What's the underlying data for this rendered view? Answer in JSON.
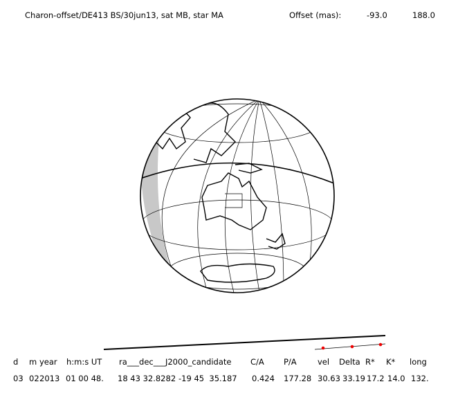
{
  "header": {
    "title": "Charon-offset/DE413 BS/30jun13, sat MB, star MA",
    "offset_label": "Offset (mas):",
    "offset_values": [
      "-93.0",
      "188.0"
    ]
  },
  "table": {
    "columns": [
      "d",
      "m",
      "year",
      "h:m:s UT",
      "ra___dec___J2000_candidate",
      "C/A",
      "P/A",
      "vel",
      "Delta",
      "R*",
      "K*",
      "long"
    ],
    "rows": [
      [
        "03",
        "02",
        "2013",
        "01 00 48.",
        "18 43 32.8282",
        "-19 45  35.187",
        "0.424",
        "177.28",
        "30.63",
        "33.19",
        "17.2",
        "14.0",
        "132."
      ]
    ]
  }
}
